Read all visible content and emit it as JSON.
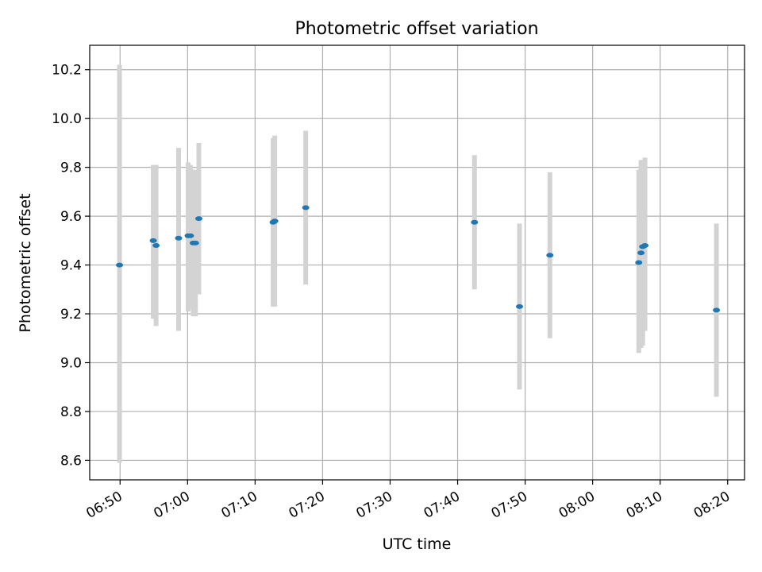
{
  "chart_data": {
    "type": "scatter",
    "title": "Photometric offset variation",
    "xlabel": "UTC time",
    "ylabel": "Photometric offset",
    "xlim": [
      "06:45:30",
      "08:22:30"
    ],
    "ylim": [
      8.52,
      10.3
    ],
    "grid": true,
    "legend": "none",
    "x_ticks": [
      "06:50",
      "07:00",
      "07:10",
      "07:20",
      "07:30",
      "07:40",
      "07:50",
      "08:00",
      "08:10",
      "08:20"
    ],
    "y_ticks": [
      "8.6",
      "8.8",
      "9.0",
      "9.2",
      "9.4",
      "9.6",
      "9.8",
      "10.0",
      "10.2"
    ],
    "colors": {
      "marker": "#1f77b4",
      "errorbar": "#d3d3d3",
      "grid": "#b0b0b0"
    },
    "points": [
      {
        "x": "06:49:55",
        "y": 9.4,
        "low": 8.59,
        "high": 10.22
      },
      {
        "x": "06:54:55",
        "y": 9.5,
        "low": 9.18,
        "high": 9.81
      },
      {
        "x": "06:55:20",
        "y": 9.48,
        "low": 9.15,
        "high": 9.81
      },
      {
        "x": "06:58:40",
        "y": 9.51,
        "low": 9.13,
        "high": 9.88
      },
      {
        "x": "07:00:05",
        "y": 9.52,
        "low": 9.21,
        "high": 9.82
      },
      {
        "x": "07:00:25",
        "y": 9.52,
        "low": 9.22,
        "high": 9.81
      },
      {
        "x": "07:00:50",
        "y": 9.49,
        "low": 9.19,
        "high": 9.79
      },
      {
        "x": "07:01:10",
        "y": 9.49,
        "low": 9.19,
        "high": 9.79
      },
      {
        "x": "07:01:40",
        "y": 9.59,
        "low": 9.28,
        "high": 9.9
      },
      {
        "x": "07:12:40",
        "y": 9.575,
        "low": 9.23,
        "high": 9.92
      },
      {
        "x": "07:12:55",
        "y": 9.58,
        "low": 9.23,
        "high": 9.93
      },
      {
        "x": "07:17:30",
        "y": 9.635,
        "low": 9.32,
        "high": 9.95
      },
      {
        "x": "07:42:30",
        "y": 9.575,
        "low": 9.3,
        "high": 9.85
      },
      {
        "x": "07:49:10",
        "y": 9.23,
        "low": 8.89,
        "high": 9.57
      },
      {
        "x": "07:53:40",
        "y": 9.44,
        "low": 9.1,
        "high": 9.78
      },
      {
        "x": "08:06:50",
        "y": 9.41,
        "low": 9.04,
        "high": 9.79
      },
      {
        "x": "08:07:10",
        "y": 9.45,
        "low": 9.06,
        "high": 9.83
      },
      {
        "x": "08:07:25",
        "y": 9.475,
        "low": 9.07,
        "high": 9.83
      },
      {
        "x": "08:07:45",
        "y": 9.48,
        "low": 9.13,
        "high": 9.84
      },
      {
        "x": "08:18:20",
        "y": 9.215,
        "low": 8.86,
        "high": 9.57
      }
    ]
  }
}
